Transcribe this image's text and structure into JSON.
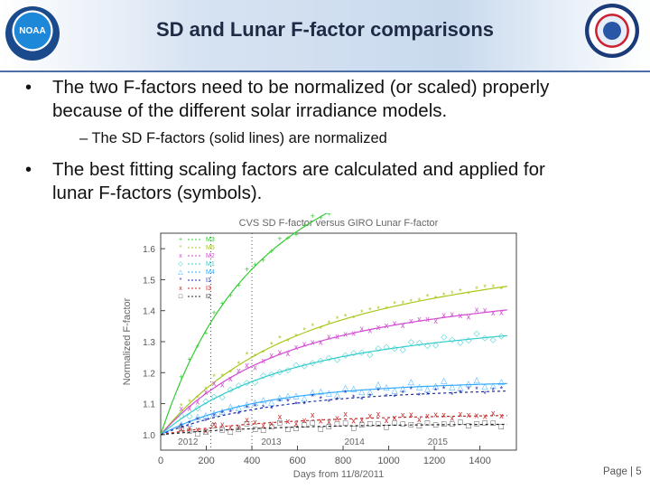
{
  "slide": {
    "title": "SD and Lunar F-factor comparisons",
    "bullets": [
      {
        "line1": "The two F-factors need to be normalized (or scaled) properly",
        "line2": "because of the different solar irradiance models."
      },
      {
        "sub": "– The SD F-factors (solid lines) are normalized"
      },
      {
        "line1": "The best fitting scaling factors are calculated  and applied for",
        "line2": "lunar F-factors (symbols)."
      }
    ],
    "page_label": "Page | 5"
  },
  "chart_data": {
    "type": "scatter",
    "title": "CVS SD F-factor versus GIRO Lunar F-factor",
    "xlabel": "Days from 11/8/2011",
    "ylabel": "Normalized F-factor",
    "xlim": [
      0,
      1560
    ],
    "ylim": [
      0.95,
      1.65
    ],
    "xticks": [
      "0",
      "200",
      "400",
      "600",
      "800",
      "1000",
      "1200",
      "1400"
    ],
    "yticks": [
      "1.0",
      "1.1",
      "1.2",
      "1.3",
      "1.4",
      "1.5",
      "1.6"
    ],
    "year_labels": [
      {
        "label": "2012",
        "x": 120
      },
      {
        "label": "2013",
        "x": 485
      },
      {
        "label": "2014",
        "x": 850
      },
      {
        "label": "2015",
        "x": 1215
      }
    ],
    "vline_x": 220,
    "vline2_x": 400,
    "series": [
      {
        "name": "M3",
        "color": "#33cc33",
        "marker": "+",
        "a": 0.6,
        "k": 2.3,
        "tau": 300
      },
      {
        "name": "M5",
        "color": "#a8c81a",
        "marker": "*",
        "a": 0.37,
        "k": 0.8,
        "tau": 450
      },
      {
        "name": "M2",
        "color": "#d24ad2",
        "marker": "x",
        "a": 0.32,
        "k": 0.6,
        "tau": 420
      },
      {
        "name": "M1",
        "color": "#33cccc",
        "marker": "◇",
        "a": 0.26,
        "k": 0.45,
        "tau": 450
      },
      {
        "name": "M4",
        "color": "#33aaff",
        "marker": "△",
        "a": 0.15,
        "k": 0.12,
        "tau": 400
      },
      {
        "name": "I1",
        "color": "#1a2aa8",
        "marker": "*",
        "a": 0.13,
        "k": 0.1,
        "tau": 450
      },
      {
        "name": "I3",
        "color": "#cc2222",
        "marker": "x",
        "a": 0.06,
        "k": 0.03,
        "tau": 500
      },
      {
        "name": "I2",
        "color": "#222222",
        "marker": "□",
        "a": 0.035,
        "k": 0.0,
        "tau": 500
      }
    ],
    "grid": false,
    "legend": "top-left"
  }
}
